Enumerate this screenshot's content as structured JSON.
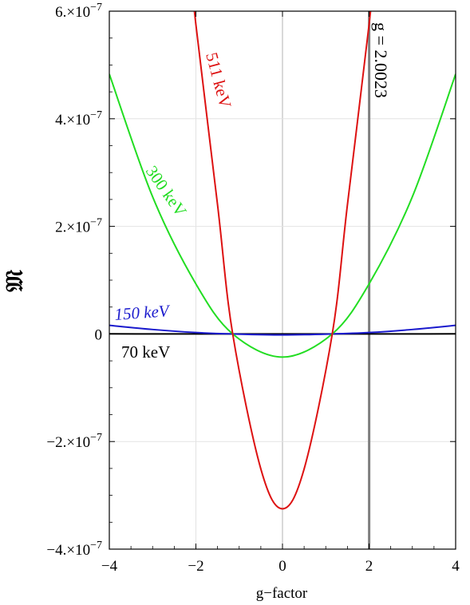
{
  "chart_data": {
    "type": "line",
    "title": "",
    "xlabel": "g−factor",
    "ylabel": "𝔐",
    "xlim": [
      -4,
      4
    ],
    "ylim": [
      -4e-07,
      6e-07
    ],
    "grid": true,
    "x_ticks": [
      {
        "value": -4,
        "label": "−4"
      },
      {
        "value": -2,
        "label": "−2"
      },
      {
        "value": 0,
        "label": "0"
      },
      {
        "value": 2,
        "label": "2"
      },
      {
        "value": 4,
        "label": "4"
      }
    ],
    "y_ticks": [
      {
        "value": -4e-07,
        "label": "−4.×10",
        "exp": "−7"
      },
      {
        "value": -2e-07,
        "label": "−2.×10",
        "exp": "−7"
      },
      {
        "value": 0,
        "label": "0",
        "exp": ""
      },
      {
        "value": 2e-07,
        "label": "2.×10",
        "exp": "−7"
      },
      {
        "value": 4e-07,
        "label": "4.×10",
        "exp": "−7"
      },
      {
        "value": 6e-07,
        "label": "6.×10",
        "exp": "−7"
      }
    ],
    "series": [
      {
        "name": "70 keV",
        "color": "#000000",
        "x": [
          -4,
          -3,
          -2,
          -1,
          0,
          1,
          2,
          3,
          4
        ],
        "y": [
          1.5e-10,
          7e-11,
          1e-11,
          -2e-11,
          -3e-11,
          -2e-11,
          1e-11,
          7e-11,
          1.5e-10
        ]
      },
      {
        "name": "150 keV",
        "color": "#1a1acd",
        "x": [
          -4,
          -3,
          -2,
          -1.15,
          0,
          1.15,
          2,
          3,
          4
        ],
        "y": [
          1.6e-08,
          8.3e-09,
          2.6e-09,
          0,
          -1.8e-09,
          0,
          2.6e-09,
          8.3e-09,
          1.6e-08
        ]
      },
      {
        "name": "300 keV",
        "color": "#22dd22",
        "x": [
          -4,
          -3,
          -2,
          -1.15,
          0,
          1.15,
          2,
          3,
          4
        ],
        "y": [
          4.83e-07,
          2.55e-07,
          9.3e-08,
          0,
          -4.3e-08,
          0,
          9.3e-08,
          2.55e-07,
          4.83e-07
        ]
      },
      {
        "name": "511 keV",
        "color": "#dd1111",
        "x": [
          -2.05,
          -2,
          -1.5,
          -1.15,
          -0.5,
          0,
          0.5,
          1.15,
          1.5,
          2,
          2.05
        ],
        "y": [
          6.3e-07,
          5.75e-07,
          2.4e-07,
          0,
          -2.51e-07,
          -3.25e-07,
          -2.51e-07,
          0,
          2.4e-07,
          5.75e-07,
          6.3e-07
        ]
      }
    ],
    "vertical_line": {
      "x": 2.0023,
      "label": "g = 2.0023",
      "color": "#7f7f7f"
    }
  }
}
